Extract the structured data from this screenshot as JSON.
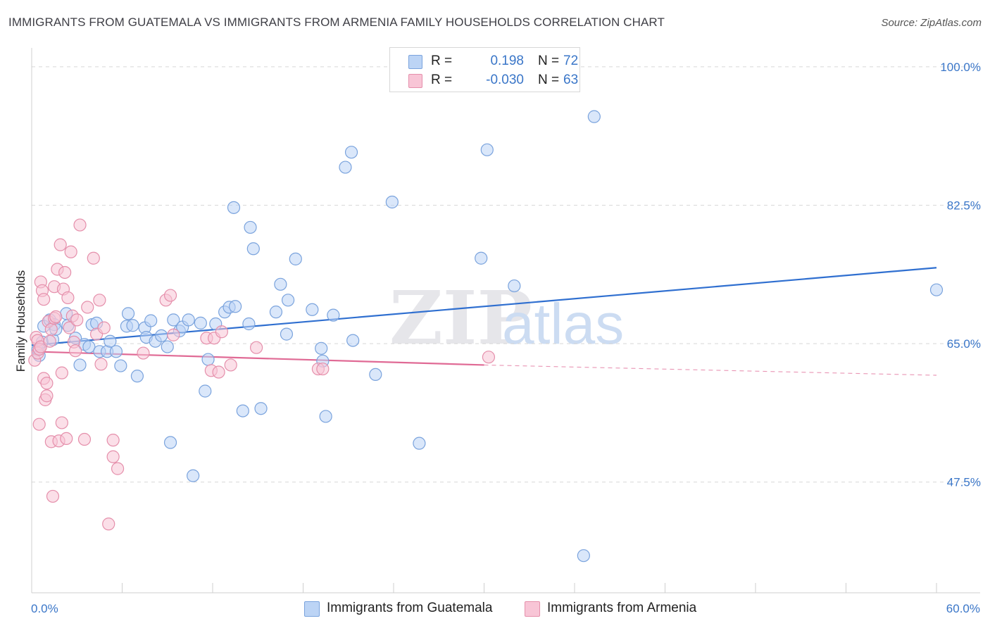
{
  "header": {
    "title": "IMMIGRANTS FROM GUATEMALA VS IMMIGRANTS FROM ARMENIA FAMILY HOUSEHOLDS CORRELATION CHART",
    "source": "Source: ZipAtlas.com"
  },
  "legend": {
    "series": [
      {
        "r_label": "R =",
        "r_value": "0.198",
        "n_label": "N =",
        "n_value": "72"
      },
      {
        "r_label": "R =",
        "r_value": "-0.030",
        "n_label": "N =",
        "n_value": "63"
      }
    ]
  },
  "bottom_legend": {
    "guatemala": "Immigrants from Guatemala",
    "armenia": "Immigrants from Armenia"
  },
  "watermark": {
    "zip": "ZIP",
    "atlas": "atlas"
  },
  "colors": {
    "blue_fill": "#bcd4f5",
    "blue_stroke": "#7aa3dd",
    "blue_line": "#2f6fd0",
    "pink_fill": "#f8c5d6",
    "pink_stroke": "#e58fab",
    "pink_line": "#e06a95",
    "grid": "#d8d8d8",
    "tick_text": "#3a76c8"
  },
  "chart_data": {
    "type": "scatter",
    "title": "IMMIGRANTS FROM GUATEMALA VS IMMIGRANTS FROM ARMENIA FAMILY HOUSEHOLDS CORRELATION CHART",
    "xlabel": "",
    "ylabel": "Family Households",
    "xlim": [
      0,
      60
    ],
    "ylim": [
      33.5,
      101.5
    ],
    "y_ticks": [
      {
        "value": 100.0,
        "label": "100.0%"
      },
      {
        "value": 82.5,
        "label": "82.5%"
      },
      {
        "value": 65.0,
        "label": "65.0%"
      },
      {
        "value": 47.5,
        "label": "47.5%"
      }
    ],
    "x_tick_labels": [
      {
        "value": 0,
        "label": "0.0%"
      },
      {
        "value": 60,
        "label": "60.0%"
      }
    ],
    "x_minor_ticks": [
      0,
      6,
      12,
      18,
      24,
      30,
      36,
      42,
      48,
      54,
      60
    ],
    "grid": true,
    "series": [
      {
        "name": "Immigrants from Guatemala",
        "color": "blue",
        "trend": {
          "x": [
            0,
            60
          ],
          "y": [
            64.8,
            74.6
          ],
          "extends_to": 60
        },
        "points": [
          [
            0.4,
            64.2
          ],
          [
            0.5,
            63.5
          ],
          [
            0.7,
            65.2
          ],
          [
            0.8,
            67.2
          ],
          [
            1.2,
            68.0
          ],
          [
            1.4,
            65.5
          ],
          [
            1.5,
            67.4
          ],
          [
            1.6,
            66.8
          ],
          [
            2.3,
            68.8
          ],
          [
            2.4,
            67.3
          ],
          [
            2.9,
            65.7
          ],
          [
            3.2,
            62.3
          ],
          [
            3.5,
            64.9
          ],
          [
            3.8,
            64.6
          ],
          [
            4.0,
            67.4
          ],
          [
            4.3,
            67.6
          ],
          [
            4.5,
            64.0
          ],
          [
            5.0,
            64.0
          ],
          [
            5.2,
            65.3
          ],
          [
            5.6,
            64.0
          ],
          [
            5.9,
            62.2
          ],
          [
            6.3,
            67.2
          ],
          [
            6.4,
            68.8
          ],
          [
            6.7,
            67.3
          ],
          [
            7.0,
            60.9
          ],
          [
            7.5,
            67.0
          ],
          [
            7.6,
            65.8
          ],
          [
            7.9,
            67.9
          ],
          [
            8.2,
            65.3
          ],
          [
            8.6,
            66.0
          ],
          [
            9.0,
            64.6
          ],
          [
            9.2,
            52.5
          ],
          [
            9.4,
            68.0
          ],
          [
            9.8,
            66.6
          ],
          [
            10.0,
            67.1
          ],
          [
            10.4,
            68.0
          ],
          [
            10.7,
            48.3
          ],
          [
            11.2,
            67.6
          ],
          [
            11.5,
            59.0
          ],
          [
            11.7,
            63.0
          ],
          [
            12.2,
            67.5
          ],
          [
            12.8,
            69.0
          ],
          [
            13.1,
            69.6
          ],
          [
            13.5,
            69.7
          ],
          [
            13.4,
            82.2
          ],
          [
            14.0,
            56.5
          ],
          [
            14.4,
            67.5
          ],
          [
            14.5,
            79.7
          ],
          [
            14.7,
            77.0
          ],
          [
            15.2,
            56.8
          ],
          [
            16.2,
            69.0
          ],
          [
            16.5,
            72.5
          ],
          [
            17.0,
            70.5
          ],
          [
            16.9,
            66.2
          ],
          [
            17.5,
            75.7
          ],
          [
            18.6,
            69.3
          ],
          [
            19.2,
            64.4
          ],
          [
            19.3,
            62.8
          ],
          [
            19.5,
            55.8
          ],
          [
            20.0,
            68.6
          ],
          [
            20.8,
            87.3
          ],
          [
            21.2,
            89.2
          ],
          [
            21.3,
            65.4
          ],
          [
            22.8,
            61.1
          ],
          [
            23.9,
            82.9
          ],
          [
            25.7,
            52.4
          ],
          [
            29.8,
            75.8
          ],
          [
            30.2,
            89.5
          ],
          [
            32.0,
            72.3
          ],
          [
            37.3,
            93.7
          ],
          [
            36.6,
            38.2
          ],
          [
            60.0,
            71.8
          ]
        ]
      },
      {
        "name": "Immigrants from Armenia",
        "color": "pink",
        "trend": {
          "x": [
            0,
            30
          ],
          "y": [
            64.0,
            62.3
          ],
          "dashed_to": {
            "x": 60,
            "y": 61.0
          }
        },
        "points": [
          [
            0.2,
            62.9
          ],
          [
            0.3,
            65.8
          ],
          [
            0.4,
            65.4
          ],
          [
            0.4,
            63.8
          ],
          [
            0.5,
            64.3
          ],
          [
            0.6,
            64.6
          ],
          [
            0.5,
            54.8
          ],
          [
            0.6,
            72.8
          ],
          [
            0.7,
            71.7
          ],
          [
            0.8,
            70.6
          ],
          [
            0.8,
            60.6
          ],
          [
            0.9,
            57.9
          ],
          [
            1.0,
            58.4
          ],
          [
            1.0,
            60.0
          ],
          [
            1.1,
            67.8
          ],
          [
            1.2,
            65.3
          ],
          [
            1.3,
            52.6
          ],
          [
            1.3,
            66.8
          ],
          [
            1.4,
            45.7
          ],
          [
            1.5,
            68.2
          ],
          [
            1.5,
            72.2
          ],
          [
            1.6,
            68.4
          ],
          [
            1.7,
            74.4
          ],
          [
            1.8,
            52.7
          ],
          [
            1.9,
            77.5
          ],
          [
            2.0,
            61.3
          ],
          [
            2.0,
            55.0
          ],
          [
            2.1,
            71.9
          ],
          [
            2.2,
            74.0
          ],
          [
            2.3,
            53.0
          ],
          [
            2.4,
            70.8
          ],
          [
            2.5,
            67.0
          ],
          [
            2.6,
            76.6
          ],
          [
            2.7,
            68.5
          ],
          [
            2.8,
            65.2
          ],
          [
            2.9,
            64.1
          ],
          [
            3.0,
            68.0
          ],
          [
            3.2,
            80.0
          ],
          [
            3.5,
            52.9
          ],
          [
            3.7,
            69.6
          ],
          [
            4.1,
            75.8
          ],
          [
            4.3,
            66.2
          ],
          [
            4.5,
            70.5
          ],
          [
            4.6,
            62.4
          ],
          [
            4.8,
            67.0
          ],
          [
            5.1,
            42.2
          ],
          [
            5.4,
            50.7
          ],
          [
            5.4,
            52.8
          ],
          [
            5.7,
            49.2
          ],
          [
            7.4,
            63.8
          ],
          [
            8.9,
            70.5
          ],
          [
            9.2,
            71.1
          ],
          [
            9.4,
            66.1
          ],
          [
            11.6,
            65.7
          ],
          [
            11.9,
            61.6
          ],
          [
            12.1,
            65.7
          ],
          [
            12.4,
            61.4
          ],
          [
            12.6,
            66.5
          ],
          [
            13.2,
            62.3
          ],
          [
            14.9,
            64.5
          ],
          [
            19.0,
            61.8
          ],
          [
            19.3,
            61.8
          ],
          [
            30.3,
            63.3
          ]
        ]
      }
    ]
  }
}
